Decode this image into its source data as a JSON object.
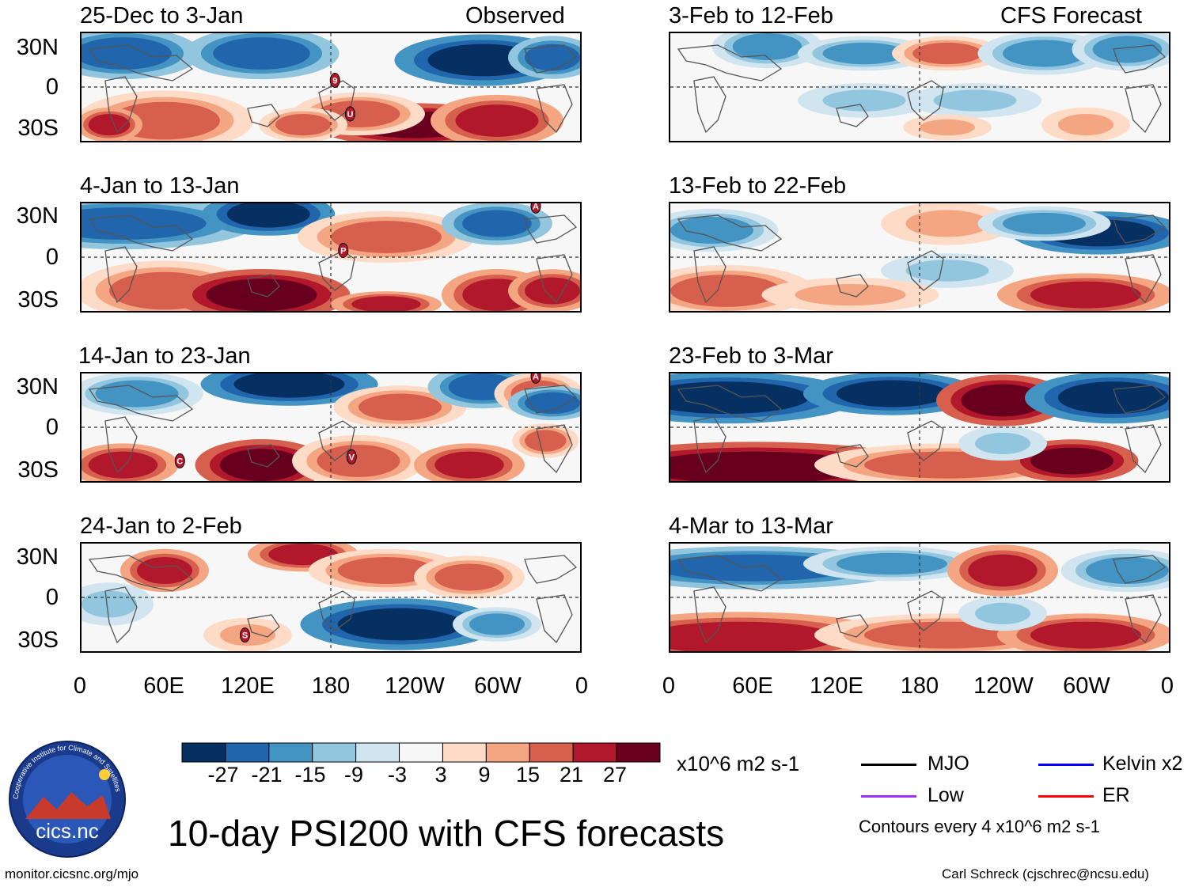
{
  "panels": [
    {
      "title": "25-Dec to 3-Jan",
      "tag": "Observed",
      "col": "left",
      "row": 0,
      "markers": [
        {
          "label": "9",
          "lon": 183,
          "lat": 5
        },
        {
          "label": "U",
          "lon": 194,
          "lat": -20
        }
      ]
    },
    {
      "title": "4-Jan to 13-Jan",
      "tag": "",
      "col": "left",
      "row": 1,
      "markers": [
        {
          "label": "A",
          "lon": 328,
          "lat": 38
        },
        {
          "label": "P",
          "lon": 189,
          "lat": 5
        }
      ]
    },
    {
      "title": "14-Jan to 23-Jan",
      "tag": "",
      "col": "left",
      "row": 2,
      "markers": [
        {
          "label": "A",
          "lon": 328,
          "lat": 38
        },
        {
          "label": "C",
          "lon": 71,
          "lat": -25
        },
        {
          "label": "V",
          "lon": 195,
          "lat": -22
        }
      ]
    },
    {
      "title": "24-Jan to 2-Feb",
      "tag": "",
      "col": "left",
      "row": 3,
      "markers": [
        {
          "label": "S",
          "lon": 118,
          "lat": -28
        }
      ]
    },
    {
      "title": "3-Feb to 12-Feb",
      "tag": "CFS Forecast",
      "col": "right",
      "row": 0,
      "markers": []
    },
    {
      "title": "13-Feb to 22-Feb",
      "tag": "",
      "col": "right",
      "row": 1,
      "markers": []
    },
    {
      "title": "23-Feb to 3-Mar",
      "tag": "",
      "col": "right",
      "row": 2,
      "markers": []
    },
    {
      "title": "4-Mar to 13-Mar",
      "tag": "",
      "col": "right",
      "row": 3,
      "markers": []
    }
  ],
  "y_labels": [
    "30N",
    "0",
    "30S"
  ],
  "x_labels": [
    "0",
    "60E",
    "120E",
    "180",
    "120W",
    "60W",
    "0"
  ],
  "colorbar": {
    "colors": [
      "#053061",
      "#2166ac",
      "#4393c3",
      "#92c5de",
      "#d1e5f0",
      "#f7f7f7",
      "#fddbc7",
      "#f4a582",
      "#d6604d",
      "#b2182b",
      "#67001f"
    ],
    "ticks": [
      "-27",
      "-21",
      "-15",
      "-9",
      "-3",
      "3",
      "9",
      "15",
      "21",
      "27"
    ],
    "units": "x10^6 m2 s-1"
  },
  "legend": {
    "items": [
      {
        "label": "MJO",
        "color": "#000000"
      },
      {
        "label": "Kelvin x2",
        "color": "#0000ff"
      },
      {
        "label": "Low",
        "color": "#9b30ff"
      },
      {
        "label": "ER",
        "color": "#ff0000"
      }
    ],
    "note": "Contours every 4 x10^6 m2 s-1"
  },
  "main_title": "10-day PSI200 with CFS forecasts",
  "logo_text": "cics.nc",
  "logo_ring_text": "Cooperative Institute for Climate and Satellites",
  "footer_left": "monitor.cicsnc.org/mjo",
  "footer_right": "Carl Schreck (cjschrec@ncsu.edu)"
}
